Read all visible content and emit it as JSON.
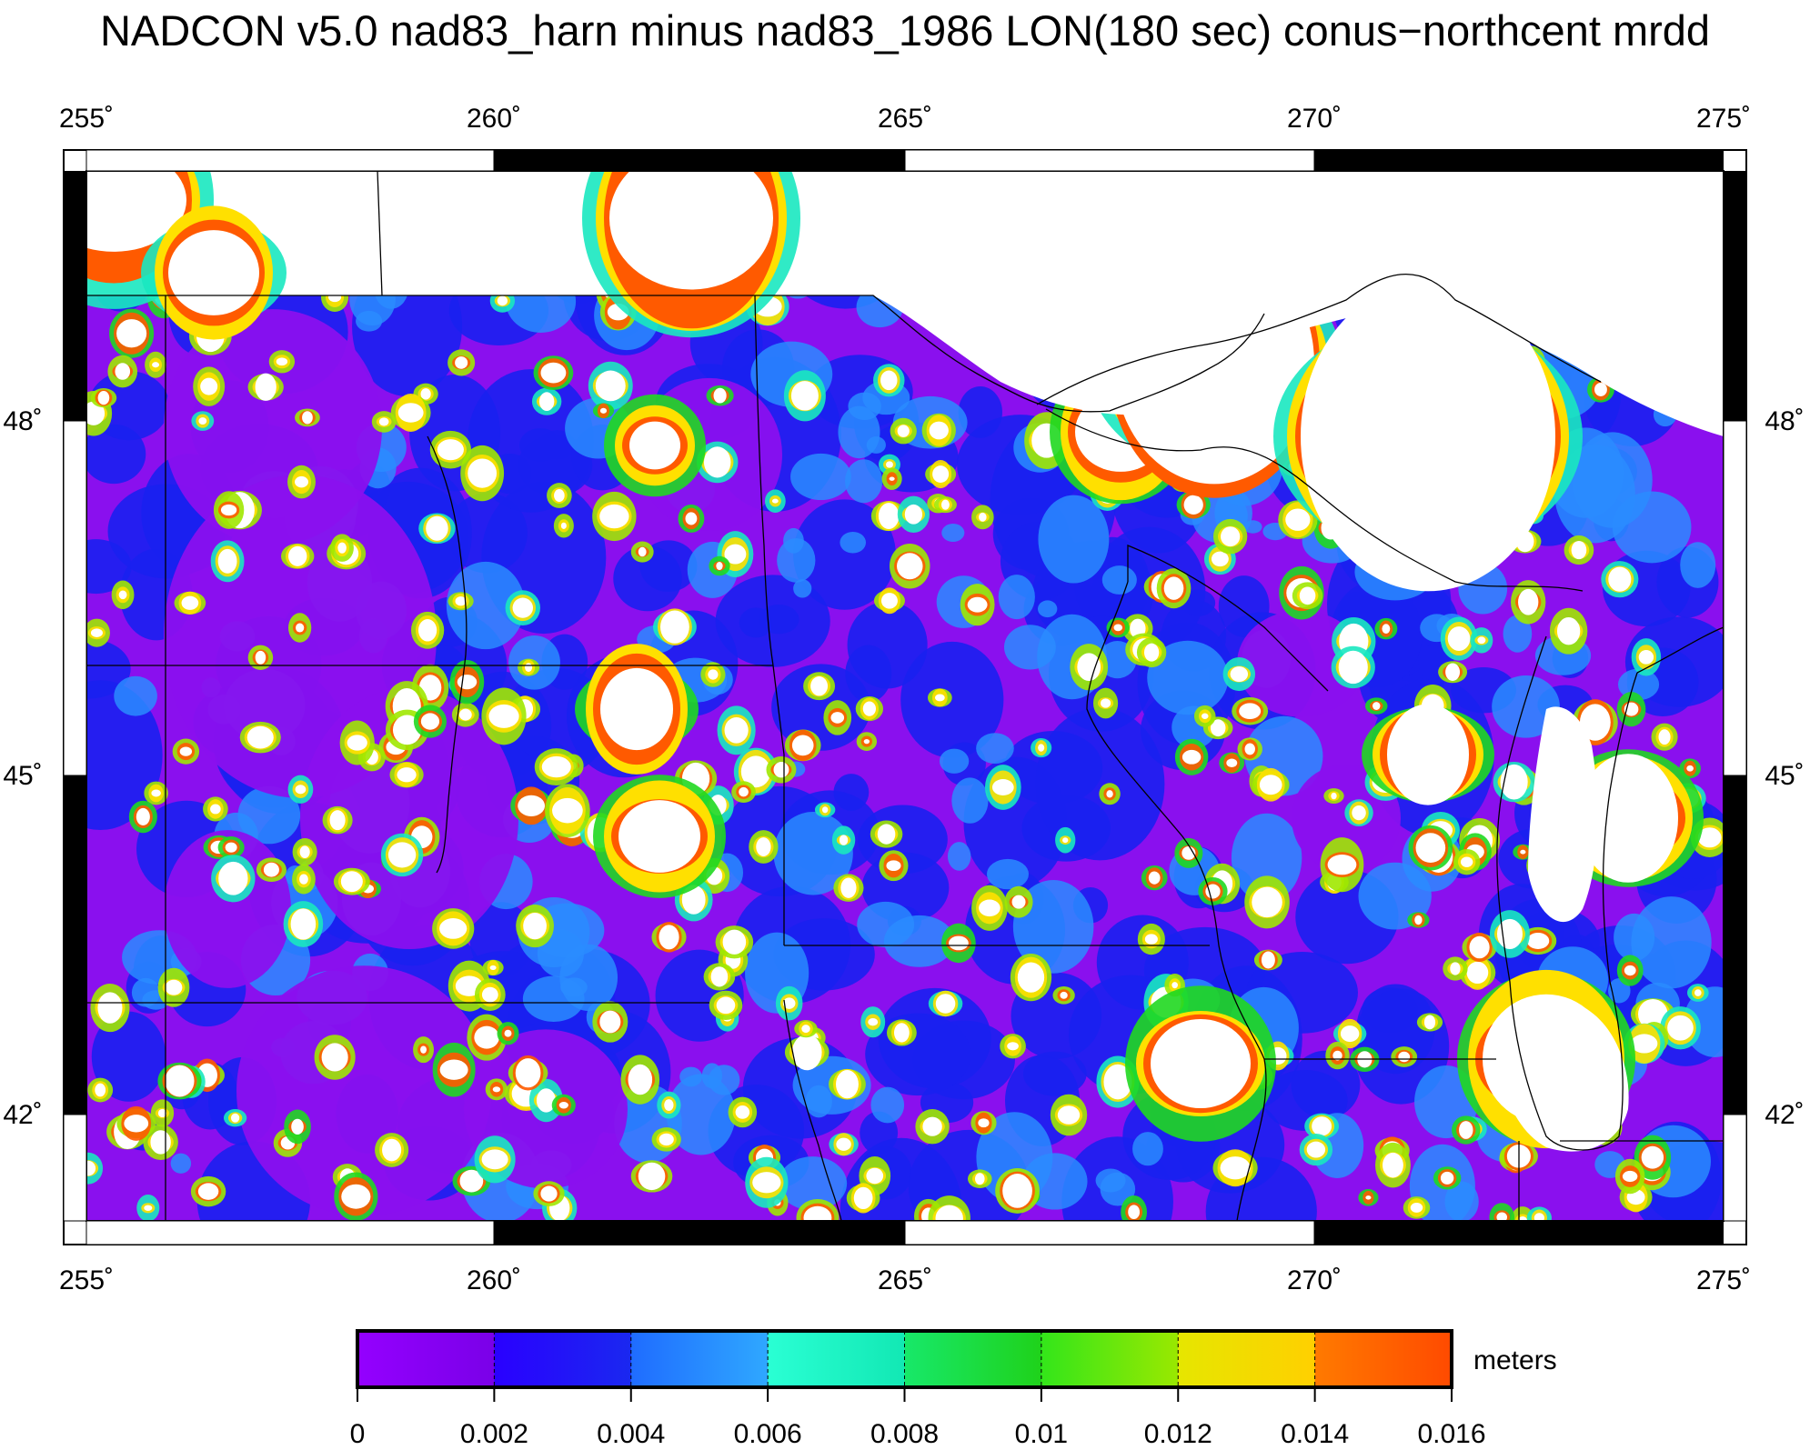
{
  "title": "NADCON v5.0 nad83_harn minus nad83_1986 LON(180 sec) conus−northcent mrdd",
  "map": {
    "longitude_ticks": [
      "255˚",
      "260˚",
      "265˚",
      "270˚",
      "275˚"
    ],
    "latitude_ticks": [
      "48˚",
      "45˚",
      "42˚"
    ],
    "lon_range": [
      255,
      275
    ],
    "lat_range": [
      40.8,
      49.8
    ]
  },
  "legend": {
    "units_label": "meters",
    "tick_labels": [
      "0",
      "0.002",
      "0.004",
      "0.006",
      "0.008",
      "0.01",
      "0.012",
      "0.014",
      "0.016"
    ],
    "bins": [
      {
        "from": 0.0,
        "to": 0.002,
        "color_start": "#9400ff",
        "color_end": "#7a00e8"
      },
      {
        "from": 0.002,
        "to": 0.004,
        "color_start": "#2a00ff",
        "color_end": "#1a28f0"
      },
      {
        "from": 0.004,
        "to": 0.006,
        "color_start": "#1f6cff",
        "color_end": "#2fa8ff"
      },
      {
        "from": 0.006,
        "to": 0.008,
        "color_start": "#2affd4",
        "color_end": "#12e8b4"
      },
      {
        "from": 0.008,
        "to": 0.01,
        "color_start": "#17e86a",
        "color_end": "#1fd21a"
      },
      {
        "from": 0.01,
        "to": 0.012,
        "color_start": "#33e61a",
        "color_end": "#9ae800"
      },
      {
        "from": 0.012,
        "to": 0.014,
        "color_start": "#e6e600",
        "color_end": "#ffd000"
      },
      {
        "from": 0.014,
        "to": 0.016,
        "color_start": "#ff7a00",
        "color_end": "#ff4a00"
      }
    ]
  }
}
